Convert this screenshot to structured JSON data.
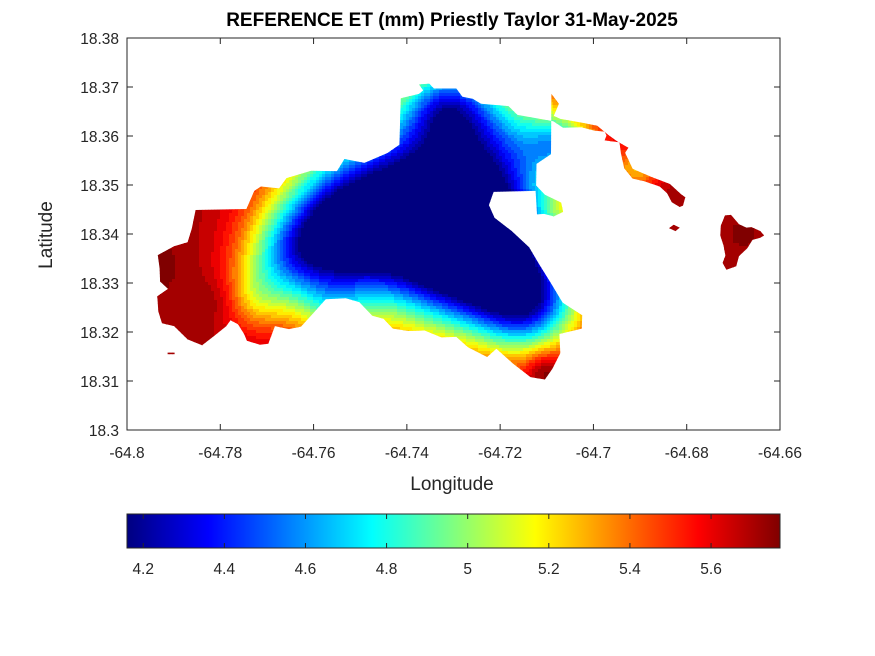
{
  "chart_data": {
    "type": "heatmap",
    "title": "REFERENCE ET (mm) Priestly Taylor 31-May-2025",
    "xlabel": "Longitude",
    "ylabel": "Latitude",
    "xlim": [
      -64.8,
      -64.66
    ],
    "ylim": [
      18.3,
      18.38
    ],
    "x_ticks": [
      -64.8,
      -64.78,
      -64.76,
      -64.74,
      -64.72,
      -64.7,
      -64.68,
      -64.66
    ],
    "x_tick_labels": [
      "-64.8",
      "-64.78",
      "-64.76",
      "-64.74",
      "-64.72",
      "-64.7",
      "-64.68",
      "-64.66"
    ],
    "y_ticks": [
      18.3,
      18.31,
      18.32,
      18.33,
      18.34,
      18.35,
      18.36,
      18.37,
      18.38
    ],
    "y_tick_labels": [
      "18.3",
      "18.31",
      "18.32",
      "18.33",
      "18.34",
      "18.35",
      "18.36",
      "18.37",
      "18.38"
    ],
    "colormap": "jet",
    "colorbar": {
      "position": "bottom",
      "range": [
        4.16,
        5.77
      ],
      "ticks": [
        4.2,
        4.4,
        4.6,
        4.8,
        5.0,
        5.2,
        5.4,
        5.6
      ],
      "tick_labels": [
        "4.2",
        "4.4",
        "4.6",
        "4.8",
        "5",
        "5.2",
        "5.4",
        "5.6"
      ]
    },
    "field": {
      "base_value": 5.72,
      "minima": [
        {
          "lon": -64.739,
          "lat": 18.3457,
          "value": 4.18,
          "radius_deg": 0.022
        },
        {
          "lon": -64.7245,
          "lat": 18.3356,
          "value": 4.3,
          "radius_deg": 0.016
        },
        {
          "lon": -64.7545,
          "lat": 18.3402,
          "value": 4.7,
          "radius_deg": 0.013
        },
        {
          "lon": -64.7215,
          "lat": 18.3585,
          "value": 5.05,
          "radius_deg": 0.016
        },
        {
          "lon": -64.707,
          "lat": 18.3585,
          "value": 5.1,
          "radius_deg": 0.007
        },
        {
          "lon": -64.7315,
          "lat": 18.3665,
          "value": 5.05,
          "radius_deg": 0.009
        },
        {
          "lon": -64.7135,
          "lat": 18.3255,
          "value": 4.75,
          "radius_deg": 0.011
        },
        {
          "lon": -64.7655,
          "lat": 18.3355,
          "value": 5.15,
          "radius_deg": 0.01
        },
        {
          "lon": -64.7725,
          "lat": 18.327,
          "value": 5.35,
          "radius_deg": 0.008
        },
        {
          "lon": -64.7565,
          "lat": 18.3245,
          "value": 5.35,
          "radius_deg": 0.008
        },
        {
          "lon": -64.6905,
          "lat": 18.3535,
          "value": 5.3,
          "radius_deg": 0.005
        }
      ],
      "maxima": [
        {
          "lon": -64.794,
          "lat": 18.333,
          "value": 5.77,
          "radius_deg": 0.006
        },
        {
          "lon": -64.784,
          "lat": 18.326,
          "value": 5.72,
          "radius_deg": 0.006
        },
        {
          "lon": -64.71,
          "lat": 18.311,
          "value": 5.75,
          "radius_deg": 0.004
        },
        {
          "lon": -64.668,
          "lat": 18.34,
          "value": 5.75,
          "radius_deg": 0.004
        }
      ]
    },
    "land_polygons": [
      {
        "name": "main island",
        "lonlat": [
          [
            -64.7934,
            18.3357
          ],
          [
            -64.7899,
            18.3375
          ],
          [
            -64.787,
            18.3383
          ],
          [
            -64.7861,
            18.3411
          ],
          [
            -64.7853,
            18.3449
          ],
          [
            -64.7744,
            18.3451
          ],
          [
            -64.7727,
            18.3488
          ],
          [
            -64.7713,
            18.3497
          ],
          [
            -64.7674,
            18.3493
          ],
          [
            -64.7658,
            18.3514
          ],
          [
            -64.7605,
            18.3529
          ],
          [
            -64.755,
            18.3528
          ],
          [
            -64.7534,
            18.3553
          ],
          [
            -64.7491,
            18.3545
          ],
          [
            -64.7442,
            18.3565
          ],
          [
            -64.7416,
            18.3582
          ],
          [
            -64.7413,
            18.3677
          ],
          [
            -64.7374,
            18.3686
          ],
          [
            -64.7365,
            18.3693
          ],
          [
            -64.7374,
            18.3705
          ],
          [
            -64.7352,
            18.3707
          ],
          [
            -64.7342,
            18.3697
          ],
          [
            -64.7294,
            18.3697
          ],
          [
            -64.7281,
            18.368
          ],
          [
            -64.7259,
            18.3676
          ],
          [
            -64.7241,
            18.3666
          ],
          [
            -64.7182,
            18.3661
          ],
          [
            -64.7163,
            18.3643
          ],
          [
            -64.7086,
            18.363
          ],
          [
            -64.7065,
            18.3617
          ],
          [
            -64.7026,
            18.3618
          ],
          [
            -64.6998,
            18.3611
          ],
          [
            -64.6976,
            18.3609
          ],
          [
            -64.6972,
            18.3601
          ],
          [
            -64.6976,
            18.3591
          ],
          [
            -64.6944,
            18.3587
          ],
          [
            -64.6941,
            18.3565
          ],
          [
            -64.6934,
            18.3534
          ],
          [
            -64.6916,
            18.3513
          ],
          [
            -64.6892,
            18.3508
          ],
          [
            -64.6858,
            18.3497
          ],
          [
            -64.6842,
            18.3483
          ],
          [
            -64.6832,
            18.3465
          ],
          [
            -64.6815,
            18.3455
          ],
          [
            -64.6808,
            18.3458
          ],
          [
            -64.6803,
            18.3475
          ],
          [
            -64.6812,
            18.3481
          ],
          [
            -64.6836,
            18.3502
          ],
          [
            -64.6874,
            18.3516
          ],
          [
            -64.6916,
            18.3533
          ],
          [
            -64.6932,
            18.3566
          ],
          [
            -64.6925,
            18.3576
          ],
          [
            -64.6949,
            18.3589
          ],
          [
            -64.6968,
            18.3602
          ],
          [
            -64.6992,
            18.3621
          ],
          [
            -64.7024,
            18.3627
          ],
          [
            -64.7071,
            18.3635
          ],
          [
            -64.7085,
            18.3641
          ],
          [
            -64.7074,
            18.3666
          ],
          [
            -64.709,
            18.3686
          ],
          [
            -64.7091,
            18.3563
          ],
          [
            -64.7122,
            18.3543
          ],
          [
            -64.7123,
            18.3499
          ],
          [
            -64.7104,
            18.348
          ],
          [
            -64.7069,
            18.3464
          ],
          [
            -64.7065,
            18.3445
          ],
          [
            -64.7085,
            18.3436
          ],
          [
            -64.7106,
            18.3441
          ],
          [
            -64.7121,
            18.344
          ],
          [
            -64.7124,
            18.3488
          ],
          [
            -64.7214,
            18.3486
          ],
          [
            -64.7224,
            18.3459
          ],
          [
            -64.7212,
            18.3433
          ],
          [
            -64.7175,
            18.3406
          ],
          [
            -64.7138,
            18.3373
          ],
          [
            -64.7117,
            18.3339
          ],
          [
            -64.7092,
            18.3301
          ],
          [
            -64.7066,
            18.326
          ],
          [
            -64.7024,
            18.3234
          ],
          [
            -64.7025,
            18.3207
          ],
          [
            -64.7073,
            18.3196
          ],
          [
            -64.7071,
            18.3157
          ],
          [
            -64.7088,
            18.3125
          ],
          [
            -64.7104,
            18.3103
          ],
          [
            -64.7135,
            18.3108
          ],
          [
            -64.7172,
            18.3135
          ],
          [
            -64.7208,
            18.3166
          ],
          [
            -64.7228,
            18.3149
          ],
          [
            -64.7269,
            18.3169
          ],
          [
            -64.7294,
            18.319
          ],
          [
            -64.7326,
            18.3189
          ],
          [
            -64.7362,
            18.3203
          ],
          [
            -64.7396,
            18.3202
          ],
          [
            -64.743,
            18.3207
          ],
          [
            -64.745,
            18.3227
          ],
          [
            -64.7474,
            18.3233
          ],
          [
            -64.7502,
            18.3261
          ],
          [
            -64.7531,
            18.3269
          ],
          [
            -64.7574,
            18.3267
          ],
          [
            -64.7601,
            18.3238
          ],
          [
            -64.7627,
            18.3211
          ],
          [
            -64.7653,
            18.3206
          ],
          [
            -64.7683,
            18.3212
          ],
          [
            -64.7697,
            18.3176
          ],
          [
            -64.7715,
            18.3174
          ],
          [
            -64.7743,
            18.3182
          ],
          [
            -64.7749,
            18.3196
          ],
          [
            -64.7762,
            18.3216
          ],
          [
            -64.7778,
            18.3224
          ],
          [
            -64.7787,
            18.3212
          ],
          [
            -64.7813,
            18.3192
          ],
          [
            -64.7839,
            18.3173
          ],
          [
            -64.787,
            18.3185
          ],
          [
            -64.7899,
            18.3212
          ],
          [
            -64.7925,
            18.3218
          ],
          [
            -64.7933,
            18.3242
          ],
          [
            -64.7935,
            18.3273
          ],
          [
            -64.7912,
            18.3288
          ],
          [
            -64.7929,
            18.3303
          ],
          [
            -64.793,
            18.333
          ]
        ]
      },
      {
        "name": "eastern point",
        "lonlat": [
          [
            -64.6718,
            18.3438
          ],
          [
            -64.6705,
            18.3439
          ],
          [
            -64.6688,
            18.342
          ],
          [
            -64.6672,
            18.3413
          ],
          [
            -64.6661,
            18.3414
          ],
          [
            -64.6642,
            18.3406
          ],
          [
            -64.6634,
            18.3397
          ],
          [
            -64.6643,
            18.3392
          ],
          [
            -64.6659,
            18.3388
          ],
          [
            -64.667,
            18.3371
          ],
          [
            -64.6688,
            18.3355
          ],
          [
            -64.6694,
            18.3334
          ],
          [
            -64.6715,
            18.3327
          ],
          [
            -64.6723,
            18.3341
          ],
          [
            -64.6717,
            18.3356
          ],
          [
            -64.6721,
            18.3376
          ],
          [
            -64.6728,
            18.3397
          ],
          [
            -64.6727,
            18.3417
          ]
        ]
      },
      {
        "name": "small islet",
        "lonlat": [
          [
            -64.6838,
            18.3412
          ],
          [
            -64.6828,
            18.3419
          ],
          [
            -64.6815,
            18.3413
          ],
          [
            -64.6824,
            18.3406
          ]
        ]
      },
      {
        "name": "west islet",
        "lonlat": [
          [
            -64.7913,
            18.3158
          ],
          [
            -64.7898,
            18.3158
          ],
          [
            -64.7898,
            18.3155
          ],
          [
            -64.7913,
            18.3155
          ]
        ]
      }
    ]
  }
}
